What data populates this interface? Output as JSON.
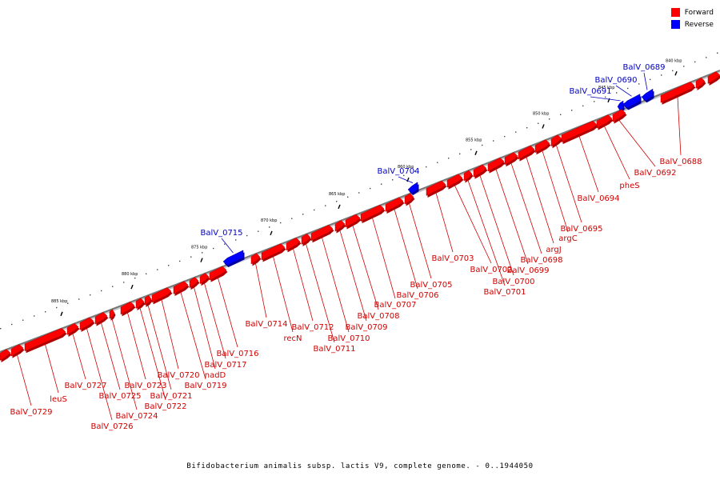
{
  "legend": {
    "forward": {
      "label": "Forward",
      "color": "#ff0000"
    },
    "reverse": {
      "label": "Reverse",
      "color": "#0000ff"
    }
  },
  "caption": "Bifidobacterium animalis subsp. lactis V9, complete genome. - 0..1944050",
  "ruler_ticks": [
    "840 kbp",
    "845 kbp",
    "850 kbp",
    "855 kbp",
    "860 kbp",
    "865 kbp",
    "870 kbp",
    "875 kbp",
    "880 kbp",
    "885 kbp"
  ],
  "genes": [
    {
      "label": "BalV_0689",
      "strand": "reverse"
    },
    {
      "label": "BalV_0690",
      "strand": "reverse"
    },
    {
      "label": "BalV_0691",
      "strand": "reverse"
    },
    {
      "label": "BalV_0688",
      "strand": "forward"
    },
    {
      "label": "BalV_0692",
      "strand": "forward"
    },
    {
      "label": "pheS",
      "strand": "forward"
    },
    {
      "label": "BalV_0694",
      "strand": "forward"
    },
    {
      "label": "BalV_0695",
      "strand": "forward"
    },
    {
      "label": "argC",
      "strand": "forward"
    },
    {
      "label": "argJ",
      "strand": "forward"
    },
    {
      "label": "BalV_0698",
      "strand": "forward"
    },
    {
      "label": "BalV_0699",
      "strand": "forward"
    },
    {
      "label": "BalV_0700",
      "strand": "forward"
    },
    {
      "label": "BalV_0701",
      "strand": "forward"
    },
    {
      "label": "BalV_0702",
      "strand": "forward"
    },
    {
      "label": "BalV_0703",
      "strand": "forward"
    },
    {
      "label": "BalV_0704",
      "strand": "reverse"
    },
    {
      "label": "BalV_0705",
      "strand": "forward"
    },
    {
      "label": "BalV_0706",
      "strand": "forward"
    },
    {
      "label": "BalV_0707",
      "strand": "forward"
    },
    {
      "label": "BalV_0708",
      "strand": "forward"
    },
    {
      "label": "BalV_0709",
      "strand": "forward"
    },
    {
      "label": "BalV_0710",
      "strand": "forward"
    },
    {
      "label": "BalV_0711",
      "strand": "forward"
    },
    {
      "label": "BalV_0712",
      "strand": "forward"
    },
    {
      "label": "recN",
      "strand": "forward"
    },
    {
      "label": "BalV_0714",
      "strand": "forward"
    },
    {
      "label": "BalV_0715",
      "strand": "reverse"
    },
    {
      "label": "BalV_0716",
      "strand": "forward"
    },
    {
      "label": "BalV_0717",
      "strand": "forward"
    },
    {
      "label": "nadD",
      "strand": "forward"
    },
    {
      "label": "BalV_0719",
      "strand": "forward"
    },
    {
      "label": "BalV_0720",
      "strand": "forward"
    },
    {
      "label": "BalV_0721",
      "strand": "forward"
    },
    {
      "label": "BalV_0722",
      "strand": "forward"
    },
    {
      "label": "BalV_0723",
      "strand": "forward"
    },
    {
      "label": "BalV_0724",
      "strand": "forward"
    },
    {
      "label": "BalV_0725",
      "strand": "forward"
    },
    {
      "label": "BalV_0726",
      "strand": "forward"
    },
    {
      "label": "BalV_0727",
      "strand": "forward"
    },
    {
      "label": "leuS",
      "strand": "forward"
    },
    {
      "label": "BalV_0729",
      "strand": "forward"
    }
  ]
}
